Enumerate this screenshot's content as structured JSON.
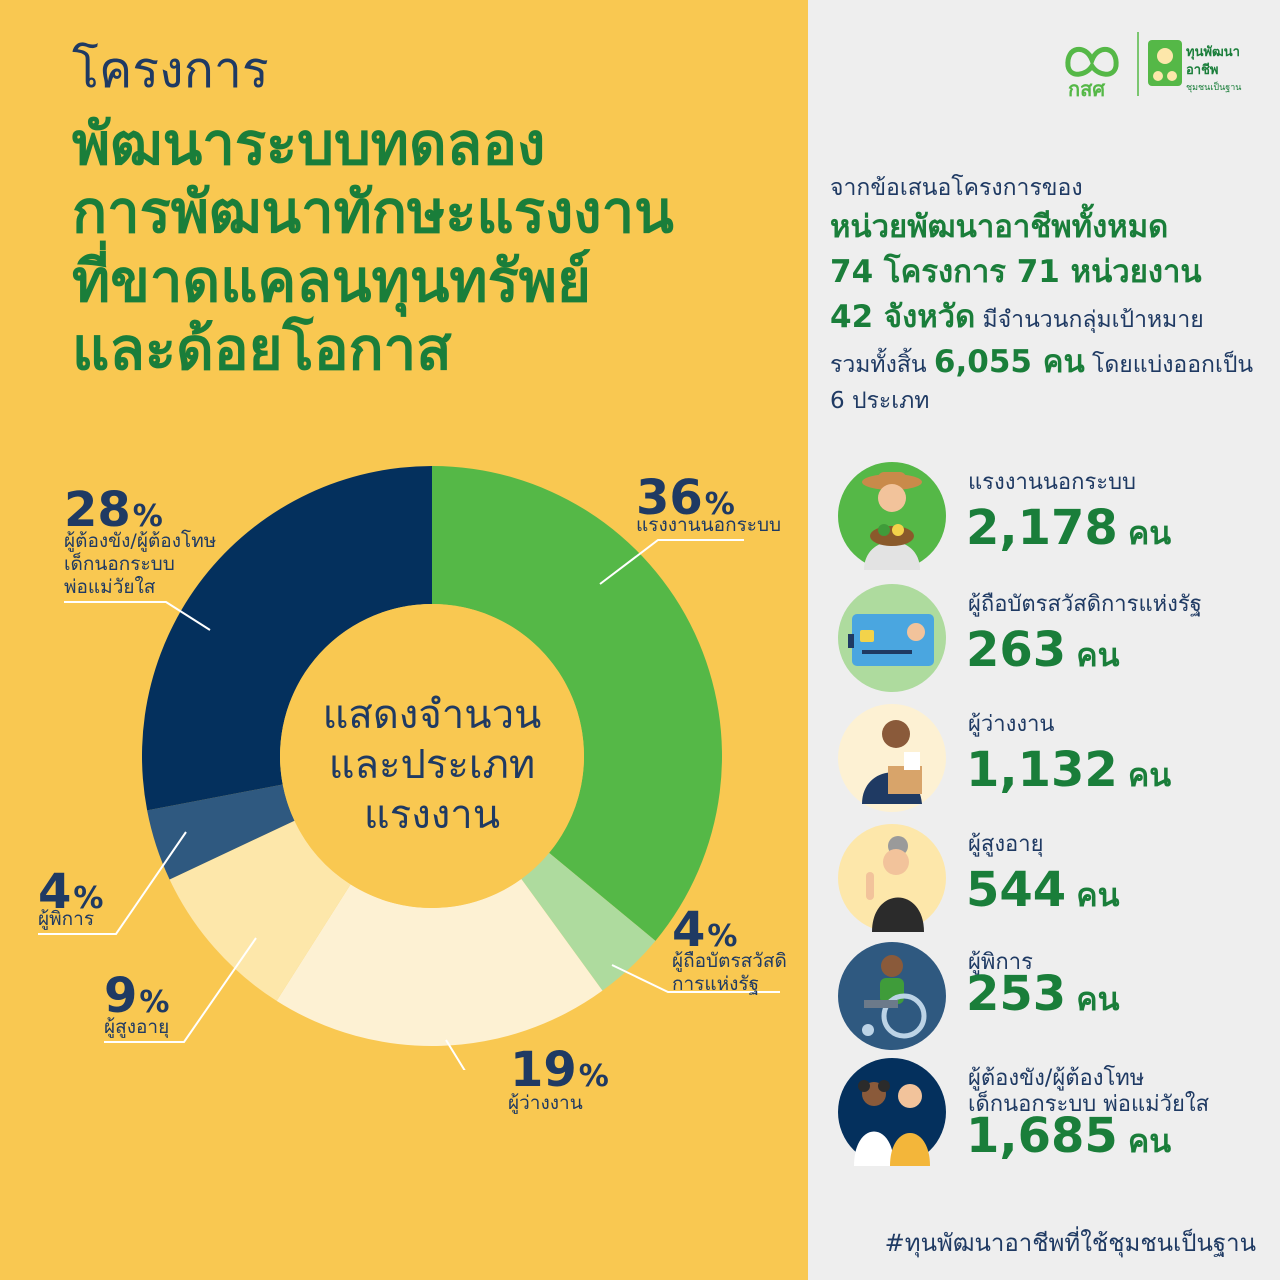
{
  "title": {
    "prefix": "โครงการ",
    "lines": [
      "พัฒนาระบบทดลอง",
      "การพัฒนาทักษะแรงงาน",
      "ที่ขาดแคลนทุนทรัพย์",
      "และด้อยโอกาส"
    ]
  },
  "logos": {
    "left_text": "กสศ",
    "right_line1": "ทุนพัฒนา",
    "right_line2": "อาชีพ",
    "right_line3": "ชุมชนเป็นฐาน"
  },
  "intro": {
    "line1": "จากข้อเสนอโครงการของ",
    "line2": "หน่วยพัฒนาอาชีพทั้งหมด",
    "line3": "74 โครงการ 71 หน่วยงาน",
    "line4_big": "42 จังหวัด",
    "line4_rest": " มีจำนวนกลุ่มเป้าหมาย",
    "line5_pre": "รวมทั้งสิ้น ",
    "line5_big": "6,055 คน",
    "line5_post": " โดยแบ่งออกเป็น",
    "line6": "6 ประเภท"
  },
  "donut_center": [
    "แสดงจำนวน",
    "และประเภท",
    "แรงงาน"
  ],
  "chart_data": {
    "type": "pie",
    "categories": [
      "แรงงานนอกระบบ",
      "ผู้ถือบัตรสวัสดิการแห่งรัฐ",
      "ผู้ว่างงาน",
      "ผู้สูงอายุ",
      "ผู้พิการ",
      "ผู้ต้องขัง/ผู้ต้องโทษ เด็กนอกระบบ พ่อแม่วัยใส"
    ],
    "values": [
      36,
      4,
      19,
      9,
      4,
      28
    ],
    "colors": [
      "#55b847",
      "#aedb9e",
      "#fdf1d3",
      "#fde7aa",
      "#2f5980",
      "#04305d"
    ],
    "value_labels": [
      "36",
      "4",
      "19",
      "9",
      "4",
      "28"
    ],
    "value_suffix": "%",
    "slice_labels": [
      [
        "แรงงานนอกระบบ"
      ],
      [
        "ผู้ถือบัตรสวัสดิ",
        "การแห่งรัฐ"
      ],
      [
        "ผู้ว่างงาน"
      ],
      [
        "ผู้สูงอายุ"
      ],
      [
        "ผู้พิการ"
      ],
      [
        "ผู้ต้องขัง/ผู้ต้องโทษ",
        "เด็กนอกระบบ",
        "พ่อแม่วัยใส"
      ]
    ]
  },
  "categories": [
    {
      "label": [
        "แรงงานนอกระบบ"
      ],
      "count": "2,178",
      "unit": "คน",
      "icon": "farmer-icon",
      "circle_color": "#55b847"
    },
    {
      "label": [
        "ผู้ถือบัตรสวัสดิการแห่งรัฐ"
      ],
      "count": "263",
      "unit": "คน",
      "icon": "welfare-card-icon",
      "circle_color": "#aedb9e"
    },
    {
      "label": [
        "ผู้ว่างงาน"
      ],
      "count": "1,132",
      "unit": "คน",
      "icon": "unemployed-worker-icon",
      "circle_color": "#fdf1d3"
    },
    {
      "label": [
        "ผู้สูงอายุ"
      ],
      "count": "544",
      "unit": "คน",
      "icon": "elderly-person-icon",
      "circle_color": "#fde7aa"
    },
    {
      "label": [
        "ผู้พิการ"
      ],
      "count": "253",
      "unit": "คน",
      "icon": "wheelchair-user-icon",
      "circle_color": "#2f5980"
    },
    {
      "label": [
        "ผู้ต้องขัง/ผู้ต้องโทษ",
        "เด็กนอกระบบ พ่อแม่วัยใส"
      ],
      "count": "1,685",
      "unit": "คน",
      "icon": "children-icon",
      "circle_color": "#04305d"
    }
  ],
  "hashtag": "#ทุนพัฒนาอาชีพที่ใช้ชุมชนเป็นฐาน"
}
